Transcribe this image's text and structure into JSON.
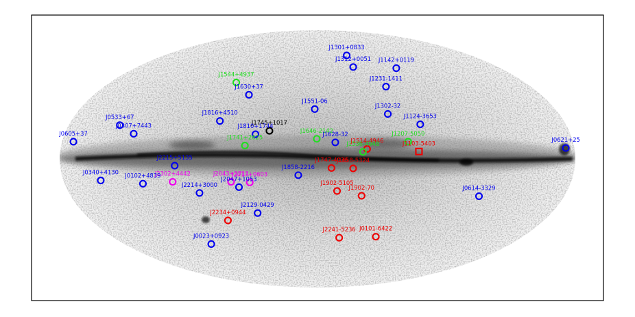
{
  "colors": {
    "blue": "#0000ee",
    "red": "#ee0000",
    "green": "#22dd22",
    "magenta": "#ee00ee",
    "black": "#000000"
  },
  "map": {
    "projection": "aitoff-galactic",
    "background": "grayscale-sky",
    "sources": [
      {
        "name": "J1301+0833",
        "l": 310.8,
        "b": 71.3,
        "color": "blue",
        "marker": "circle"
      },
      {
        "name": "J1142+0119",
        "l": 267.6,
        "b": 59.0,
        "color": "blue",
        "marker": "circle"
      },
      {
        "name": "J1312+0051",
        "l": 314.8,
        "b": 63.2,
        "color": "blue",
        "marker": "circle"
      },
      {
        "name": "J1231-1411",
        "l": 295.5,
        "b": 48.4,
        "color": "blue",
        "marker": "circle"
      },
      {
        "name": "J1544+4937",
        "l": 79.2,
        "b": 50.2,
        "color": "green",
        "marker": "circle"
      },
      {
        "name": "J1630+37",
        "l": 60.0,
        "b": 43.1,
        "color": "blue",
        "marker": "circle"
      },
      {
        "name": "J1551-06",
        "l": 2.2,
        "b": 34.8,
        "color": "blue",
        "marker": "circle"
      },
      {
        "name": "J1302-32",
        "l": 305.6,
        "b": 30.3,
        "color": "blue",
        "marker": "circle"
      },
      {
        "name": "J1124-3653",
        "l": 284.1,
        "b": 22.5,
        "color": "blue",
        "marker": "circle"
      },
      {
        "name": "J1816+4510",
        "l": 73.0,
        "b": 24.8,
        "color": "blue",
        "marker": "circle"
      },
      {
        "name": "J0533+67",
        "l": 144.0,
        "b": 18.0,
        "color": "blue",
        "marker": "circle"
      },
      {
        "name": "J0307+7443",
        "l": 131.5,
        "b": 14.0,
        "color": "blue",
        "marker": "circle"
      },
      {
        "name": "J1745+1017",
        "l": 34.9,
        "b": 19.3,
        "color": "black",
        "marker": "circle"
      },
      {
        "name": "J1646-2142",
        "l": 0.5,
        "b": 14.0,
        "color": "green",
        "marker": "circle"
      },
      {
        "name": "J1628-32",
        "l": 347.4,
        "b": 11.5,
        "color": "blue",
        "marker": "circle"
      },
      {
        "name": "J1514-4946",
        "l": 325.2,
        "b": 6.8,
        "color": "red",
        "marker": "circle"
      },
      {
        "name": "J1207-5050",
        "l": 295.8,
        "b": 11.4,
        "color": "green",
        "marker": "circle"
      },
      {
        "name": "J1103-5403",
        "l": 289.0,
        "b": 4.8,
        "color": "red",
        "marker": "square"
      },
      {
        "name": "J0605+37",
        "l": 172.0,
        "b": 8.0,
        "color": "blue",
        "marker": "circle"
      },
      {
        "name": "J1810+1744",
        "l": 44.6,
        "b": 16.8,
        "color": "blue",
        "marker": "circle"
      },
      {
        "name": "J1741+2625",
        "l": 51.1,
        "b": 9.0,
        "color": "green",
        "marker": "circle"
      },
      {
        "name": "J1536-4948",
        "l": 328.2,
        "b": 4.8,
        "color": "green",
        "marker": "circle"
      },
      {
        "name": "J0621+25",
        "l": 186.0,
        "b": 5.0,
        "color": "blue",
        "marker": "circle"
      },
      {
        "name": "J2215+5135",
        "l": 99.9,
        "b": -4.2,
        "color": "blue",
        "marker": "circle"
      },
      {
        "name": "J1747-4036",
        "l": 350.2,
        "b": -6.4,
        "color": "red",
        "marker": "circle"
      },
      {
        "name": "J1658-5324",
        "l": 335.0,
        "b": -6.6,
        "color": "red",
        "marker": "circle"
      },
      {
        "name": "J1858-2216",
        "l": 13.6,
        "b": -11.4,
        "color": "blue",
        "marker": "circle"
      },
      {
        "name": "J0340+4130",
        "l": 153.8,
        "b": -11.0,
        "color": "blue",
        "marker": "circle"
      },
      {
        "name": "J2302+4442",
        "l": 103.4,
        "b": -14.0,
        "color": "magenta",
        "marker": "circle"
      },
      {
        "name": "J2043+1711",
        "l": 61.9,
        "b": -15.3,
        "color": "magenta",
        "marker": "circle"
      },
      {
        "name": "J2047+1053",
        "l": 57.0,
        "b": -19.0,
        "color": "blue",
        "marker": "circle"
      },
      {
        "name": "J2017+0603",
        "l": 48.6,
        "b": -16.0,
        "color": "magenta",
        "marker": "circle"
      },
      {
        "name": "J0102+4839",
        "l": 124.9,
        "b": -14.2,
        "color": "blue",
        "marker": "circle"
      },
      {
        "name": "J2214+3000",
        "l": 86.9,
        "b": -21.7,
        "color": "blue",
        "marker": "circle"
      },
      {
        "name": "J1902-5105",
        "l": 345.6,
        "b": -22.4,
        "color": "red",
        "marker": "circle"
      },
      {
        "name": "J1902-70",
        "l": 327.0,
        "b": -25.5,
        "color": "red",
        "marker": "circle"
      },
      {
        "name": "J0614-3329",
        "l": 240.5,
        "b": -21.8,
        "color": "blue",
        "marker": "circle"
      },
      {
        "name": "J2129-0429",
        "l": 48.9,
        "b": -36.9,
        "color": "blue",
        "marker": "circle"
      },
      {
        "name": "J2234+0944",
        "l": 76.3,
        "b": -40.4,
        "color": "red",
        "marker": "circle"
      },
      {
        "name": "J0023+0923",
        "l": 111.4,
        "b": -53.0,
        "color": "blue",
        "marker": "circle"
      },
      {
        "name": "J2241-5236",
        "l": 337.5,
        "b": -54.9,
        "color": "red",
        "marker": "circle"
      },
      {
        "name": "J0101-6422",
        "l": 301.2,
        "b": -52.7,
        "color": "red",
        "marker": "circle"
      }
    ]
  }
}
